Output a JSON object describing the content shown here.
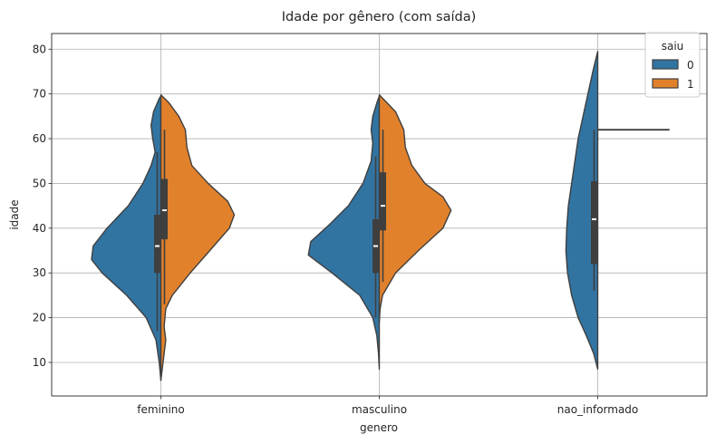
{
  "chart_data": {
    "type": "violin",
    "title": "Idade por gênero (com saída)",
    "xlabel": "genero",
    "ylabel": "idade",
    "ylim": [
      2.5,
      83.5
    ],
    "yticks": [
      10,
      20,
      30,
      40,
      50,
      60,
      70,
      80
    ],
    "categories": [
      "feminino",
      "masculino",
      "nao_informado"
    ],
    "grid": true,
    "split": true,
    "legend": {
      "title": "saiu",
      "placement": "top-right",
      "entries": [
        {
          "label": "0",
          "color": "#3274a1"
        },
        {
          "label": "1",
          "color": "#e1812c"
        }
      ]
    },
    "violins": [
      {
        "category": "feminino",
        "series": "0",
        "density": [
          [
            6,
            0.0
          ],
          [
            10,
            0.02
          ],
          [
            15,
            0.06
          ],
          [
            20,
            0.18
          ],
          [
            25,
            0.42
          ],
          [
            30,
            0.72
          ],
          [
            33,
            0.85
          ],
          [
            36,
            0.83
          ],
          [
            40,
            0.66
          ],
          [
            45,
            0.4
          ],
          [
            50,
            0.22
          ],
          [
            54,
            0.12
          ],
          [
            57,
            0.07
          ],
          [
            60,
            0.1
          ],
          [
            63,
            0.12
          ],
          [
            66,
            0.09
          ],
          [
            69,
            0.02
          ],
          [
            69.5,
            0.0
          ]
        ],
        "box": {
          "q1": 30,
          "median": 36,
          "q3": 43,
          "whisker_low": 17,
          "whisker_high": 57
        }
      },
      {
        "category": "feminino",
        "series": "1",
        "density": [
          [
            6,
            0.0
          ],
          [
            9,
            0.02
          ],
          [
            12,
            0.04
          ],
          [
            15,
            0.06
          ],
          [
            18,
            0.04
          ],
          [
            22,
            0.06
          ],
          [
            25,
            0.14
          ],
          [
            30,
            0.36
          ],
          [
            35,
            0.6
          ],
          [
            40,
            0.84
          ],
          [
            43,
            0.9
          ],
          [
            46,
            0.82
          ],
          [
            50,
            0.58
          ],
          [
            54,
            0.38
          ],
          [
            58,
            0.32
          ],
          [
            62,
            0.3
          ],
          [
            65,
            0.22
          ],
          [
            68,
            0.1
          ],
          [
            69.8,
            0.0
          ]
        ],
        "box": {
          "q1": 37.5,
          "median": 44,
          "q3": 51,
          "whisker_low": 23,
          "whisker_high": 62
        }
      },
      {
        "category": "masculino",
        "series": "0",
        "density": [
          [
            8.5,
            0.0
          ],
          [
            12,
            0.01
          ],
          [
            16,
            0.03
          ],
          [
            20,
            0.08
          ],
          [
            25,
            0.24
          ],
          [
            30,
            0.58
          ],
          [
            34,
            0.87
          ],
          [
            37,
            0.84
          ],
          [
            41,
            0.6
          ],
          [
            45,
            0.38
          ],
          [
            50,
            0.2
          ],
          [
            55,
            0.1
          ],
          [
            59,
            0.08
          ],
          [
            62,
            0.1
          ],
          [
            65,
            0.08
          ],
          [
            68,
            0.03
          ],
          [
            69.5,
            0.0
          ]
        ],
        "box": {
          "q1": 30,
          "median": 36,
          "q3": 42,
          "whisker_low": 20,
          "whisker_high": 56
        }
      },
      {
        "category": "masculino",
        "series": "1",
        "density": [
          [
            19,
            0.0
          ],
          [
            22,
            0.01
          ],
          [
            25,
            0.04
          ],
          [
            30,
            0.2
          ],
          [
            35,
            0.48
          ],
          [
            40,
            0.78
          ],
          [
            44,
            0.88
          ],
          [
            47,
            0.78
          ],
          [
            50,
            0.56
          ],
          [
            54,
            0.4
          ],
          [
            58,
            0.32
          ],
          [
            62,
            0.3
          ],
          [
            66,
            0.2
          ],
          [
            69.8,
            0.0
          ]
        ],
        "box": {
          "q1": 39.5,
          "median": 45,
          "q3": 52.5,
          "whisker_low": 28,
          "whisker_high": 62
        }
      },
      {
        "category": "nao_informado",
        "series": "0",
        "density": [
          [
            8.5,
            0.0
          ],
          [
            12,
            0.05
          ],
          [
            16,
            0.14
          ],
          [
            20,
            0.24
          ],
          [
            25,
            0.32
          ],
          [
            30,
            0.37
          ],
          [
            35,
            0.39
          ],
          [
            40,
            0.38
          ],
          [
            45,
            0.36
          ],
          [
            50,
            0.32
          ],
          [
            55,
            0.28
          ],
          [
            60,
            0.24
          ],
          [
            65,
            0.18
          ],
          [
            70,
            0.12
          ],
          [
            75,
            0.06
          ],
          [
            79.5,
            0.0
          ]
        ],
        "box": {
          "q1": 32,
          "median": 42,
          "q3": 50.5,
          "whisker_low": 26,
          "whisker_high": 62
        }
      },
      {
        "category": "nao_informado",
        "series": "1",
        "density": [
          [
            62,
            0.0
          ]
        ],
        "box": {
          "q1": 62,
          "median": 62,
          "q3": 62,
          "whisker_low": 62,
          "whisker_high": 62
        }
      }
    ]
  }
}
